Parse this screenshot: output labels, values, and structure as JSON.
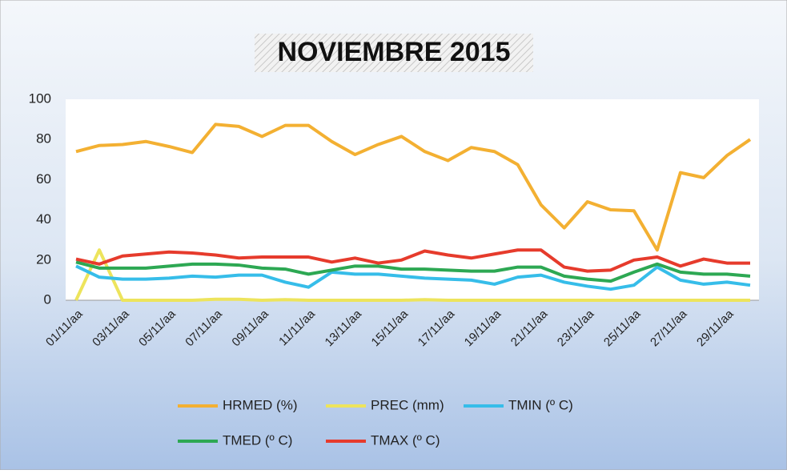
{
  "chart_data": {
    "type": "line",
    "title": "NOVIEMBRE 2015",
    "categories": [
      "01/11/aa",
      null,
      "03/11/aa",
      null,
      "05/11/aa",
      null,
      "07/11/aa",
      null,
      "09/11/aa",
      null,
      "11/11/aa",
      null,
      "13/11/aa",
      null,
      "15/11/aa",
      null,
      "17/11/aa",
      null,
      "19/11/aa",
      null,
      "21/11/aa",
      null,
      "23/11/aa",
      null,
      "25/11/aa",
      null,
      "27/11/aa",
      null,
      "29/11/aa",
      null
    ],
    "series": [
      {
        "name": "HRMED (%)",
        "color": "#f3b032",
        "values": [
          74,
          77,
          77.5,
          79,
          76.5,
          73.5,
          87.5,
          86.5,
          81.5,
          87,
          87,
          79,
          72.5,
          77.5,
          81.5,
          74,
          69.5,
          76,
          74,
          67.5,
          47.5,
          36,
          49,
          45,
          44.5,
          25,
          63.5,
          61,
          72,
          80
        ]
      },
      {
        "name": "PREC (mm)",
        "color": "#ede45c",
        "values": [
          0,
          25,
          0,
          0,
          0,
          0,
          0.5,
          0.5,
          0,
          0.3,
          0,
          0,
          0,
          0,
          0,
          0.3,
          0,
          0,
          0,
          0,
          0,
          0,
          0,
          0,
          0,
          0,
          0,
          0,
          0,
          0
        ]
      },
      {
        "name": "TMIN (º C)",
        "color": "#36bde9",
        "values": [
          17,
          11.5,
          10.5,
          10.5,
          11,
          12,
          11.5,
          12.5,
          12.5,
          9,
          6.5,
          14,
          13,
          13,
          12,
          11,
          10.5,
          10,
          8,
          11.5,
          12.5,
          9,
          7,
          5.5,
          7.5,
          16.5,
          10,
          8,
          9,
          7.5
        ]
      },
      {
        "name": "TMED (º C)",
        "color": "#2da853",
        "values": [
          19,
          16,
          16,
          16,
          17,
          18,
          18,
          17.5,
          16,
          15.5,
          13,
          15,
          17,
          17,
          15.5,
          15.5,
          15,
          14.5,
          14.5,
          16.5,
          16.5,
          12,
          10.5,
          9.5,
          14,
          18,
          14,
          13,
          13,
          12
        ]
      },
      {
        "name": "TMAX (º C)",
        "color": "#e63b2c",
        "values": [
          20.5,
          18,
          22,
          23,
          24,
          23.5,
          22.5,
          21,
          21.5,
          21.5,
          21.5,
          19,
          21,
          18.5,
          20,
          24.5,
          22.5,
          21,
          23,
          25,
          25,
          16.5,
          14.5,
          15,
          20,
          21.5,
          17,
          20.5,
          18.5,
          18.5
        ]
      }
    ],
    "ylim": [
      0,
      100
    ],
    "yticks": [
      0,
      20,
      40,
      60,
      80,
      100
    ],
    "grid": false
  }
}
